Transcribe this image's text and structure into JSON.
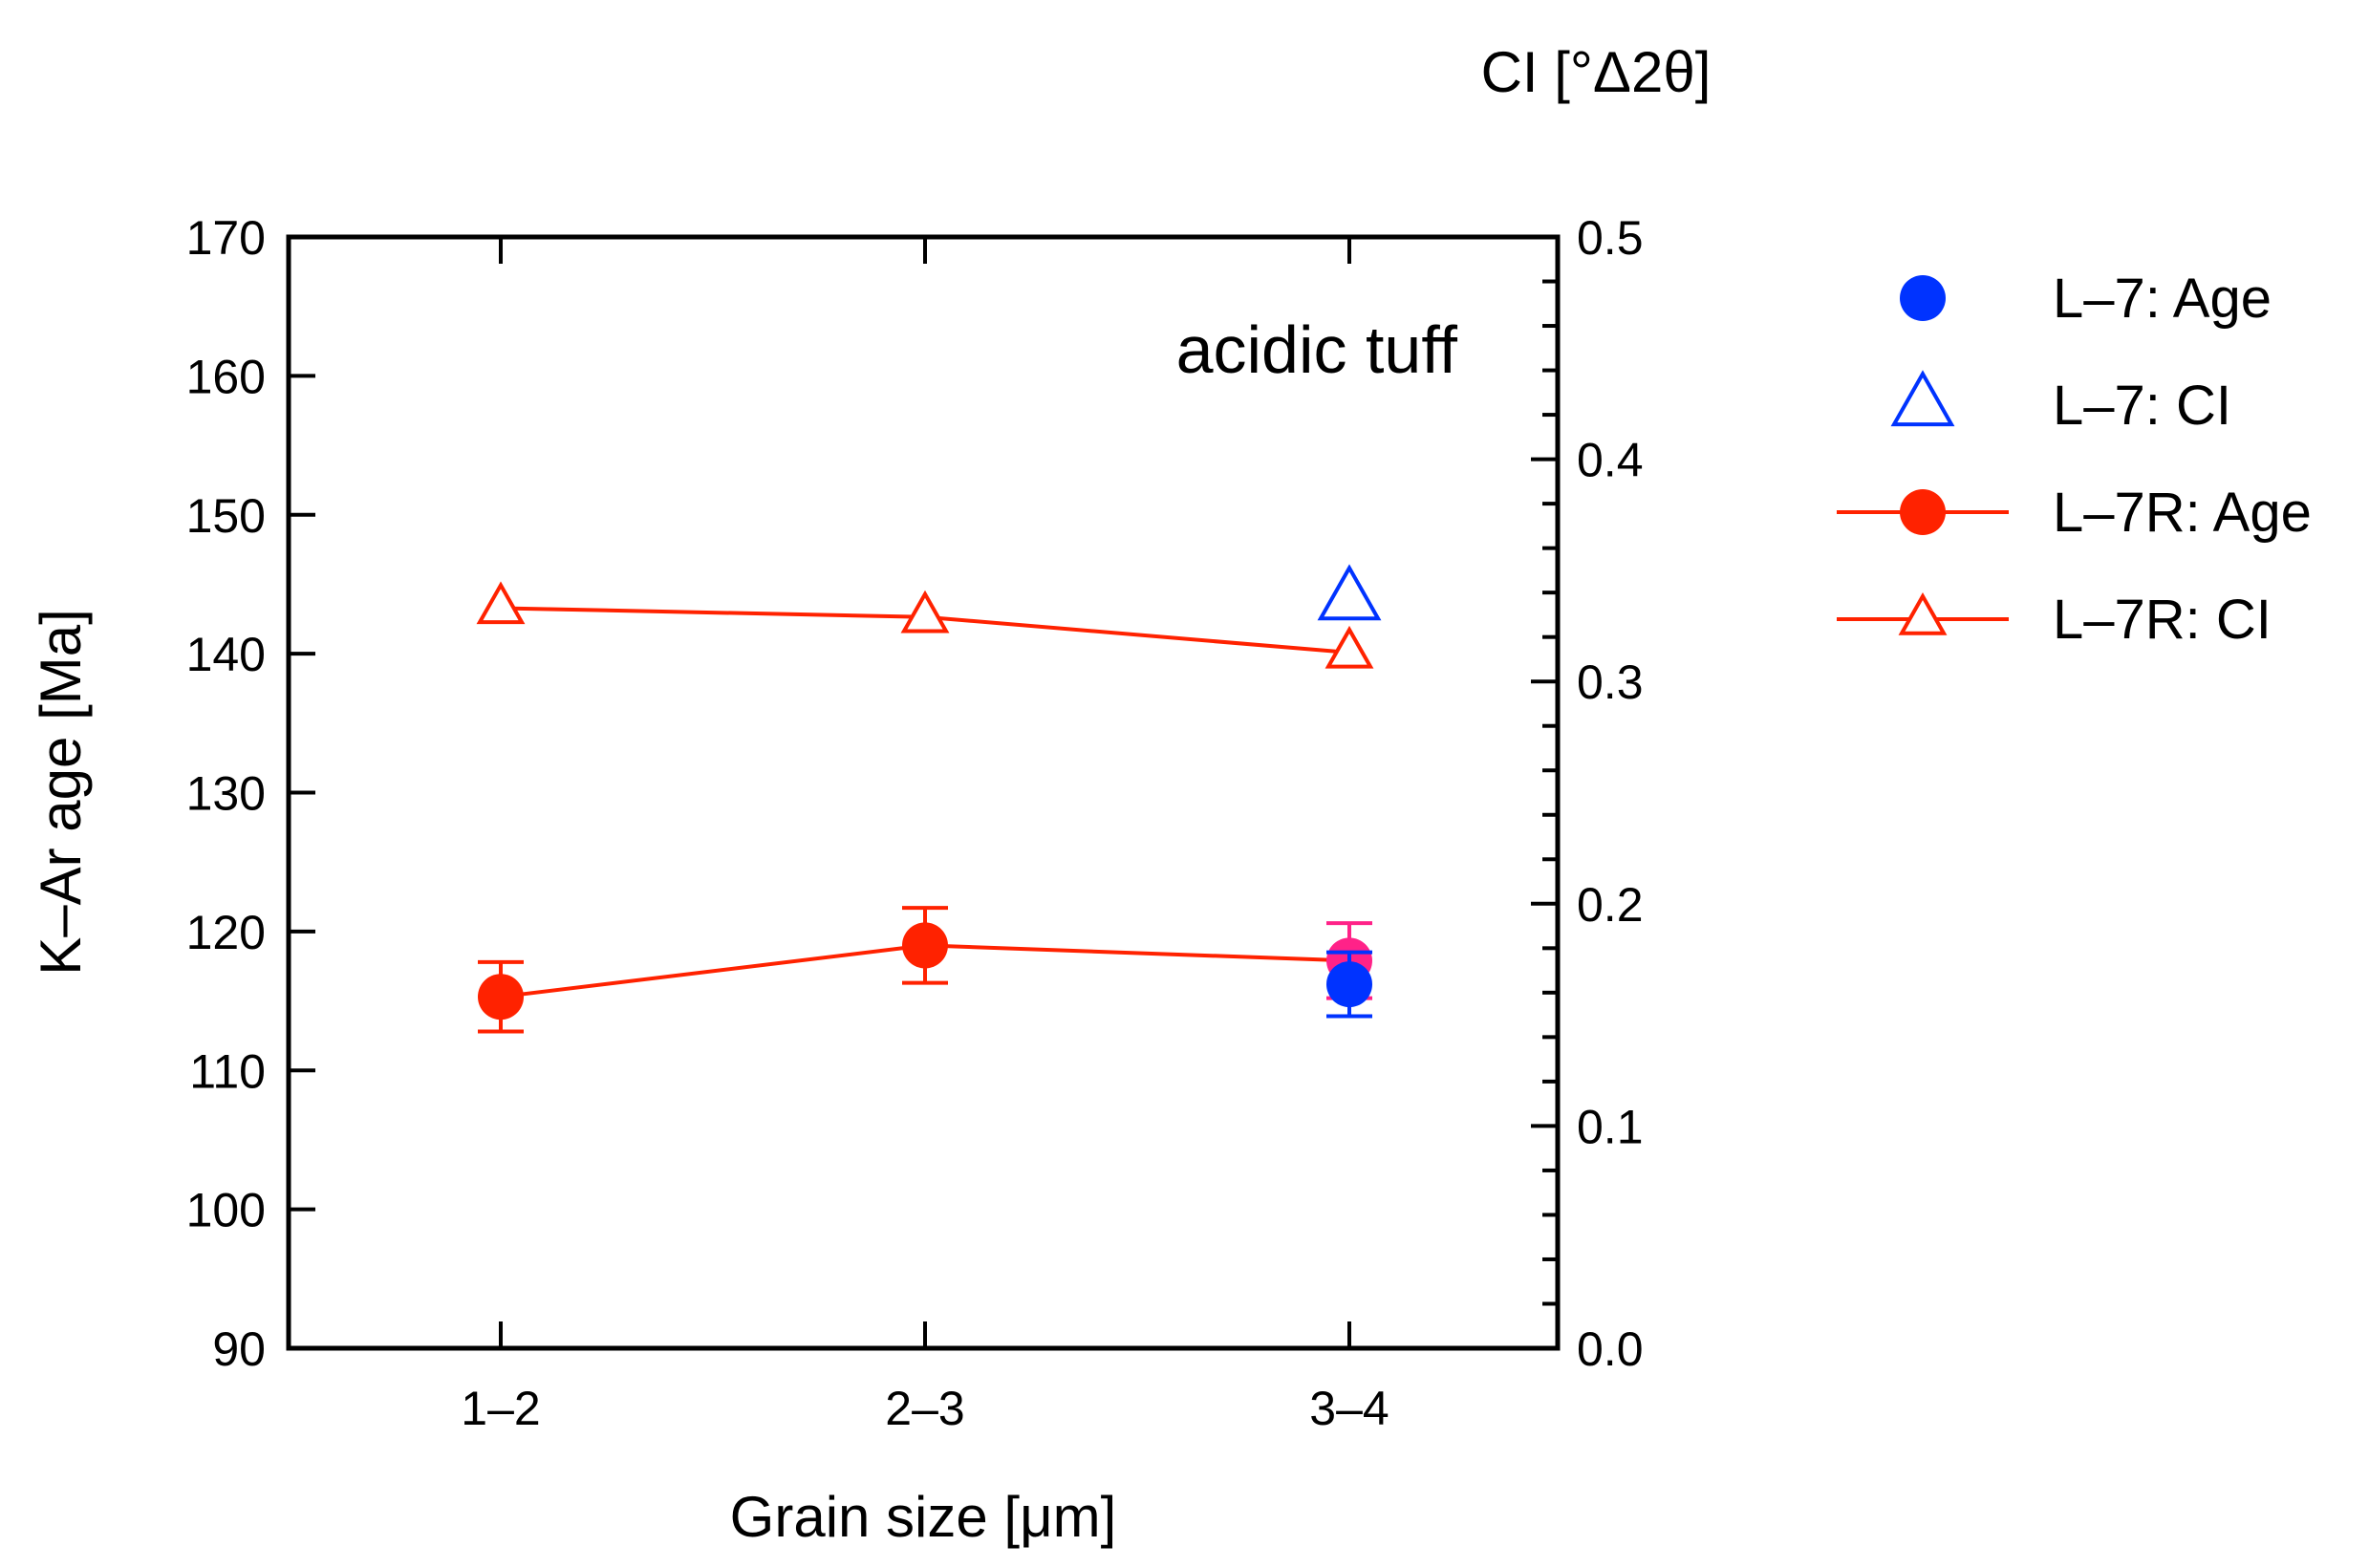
{
  "chart_data": {
    "type": "line",
    "annotation": "acidic tuff",
    "xlabel": "Grain size [μm]",
    "ylabel": "K–Ar age [Ma]",
    "y2label": "CI [°Δ2θ]",
    "categories": [
      "1–2",
      "2–3",
      "3–4"
    ],
    "ylim": [
      90,
      170
    ],
    "yticks": [
      90,
      100,
      110,
      120,
      130,
      140,
      150,
      160,
      170
    ],
    "y2lim": [
      0.0,
      0.5
    ],
    "y2ticks": [
      "0.0",
      "0.1",
      "0.2",
      "0.3",
      "0.4",
      "0.5"
    ],
    "grid": false,
    "legend_position": "right",
    "series": [
      {
        "name": "L–7: Age",
        "axis": "left",
        "marker": "circle-filled",
        "line": false,
        "color": "#0033FF",
        "points": [
          {
            "x": "3–4",
            "y": 116.2,
            "err": 2.3
          }
        ]
      },
      {
        "name": "L–7: CI",
        "axis": "right",
        "marker": "triangle-open",
        "line": false,
        "color": "#0033FF",
        "points": [
          {
            "x": "3–4",
            "y": 0.337
          }
        ]
      },
      {
        "name": "L–7R: Age",
        "axis": "left",
        "marker": "circle-filled",
        "line": true,
        "color": "#FF2200",
        "points": [
          {
            "x": "1–2",
            "y": 115.3,
            "err": 2.5
          },
          {
            "x": "2–3",
            "y": 119.0,
            "err": 2.7
          },
          {
            "x": "3–4",
            "y": 117.9,
            "err": 2.7,
            "marker_color": "#FF2288"
          }
        ]
      },
      {
        "name": "L–7R: CI",
        "axis": "right",
        "marker": "triangle-open",
        "line": true,
        "color": "#FF2200",
        "points": [
          {
            "x": "1–2",
            "y": 0.333
          },
          {
            "x": "2–3",
            "y": 0.329
          },
          {
            "x": "3–4",
            "y": 0.313
          }
        ]
      }
    ]
  }
}
